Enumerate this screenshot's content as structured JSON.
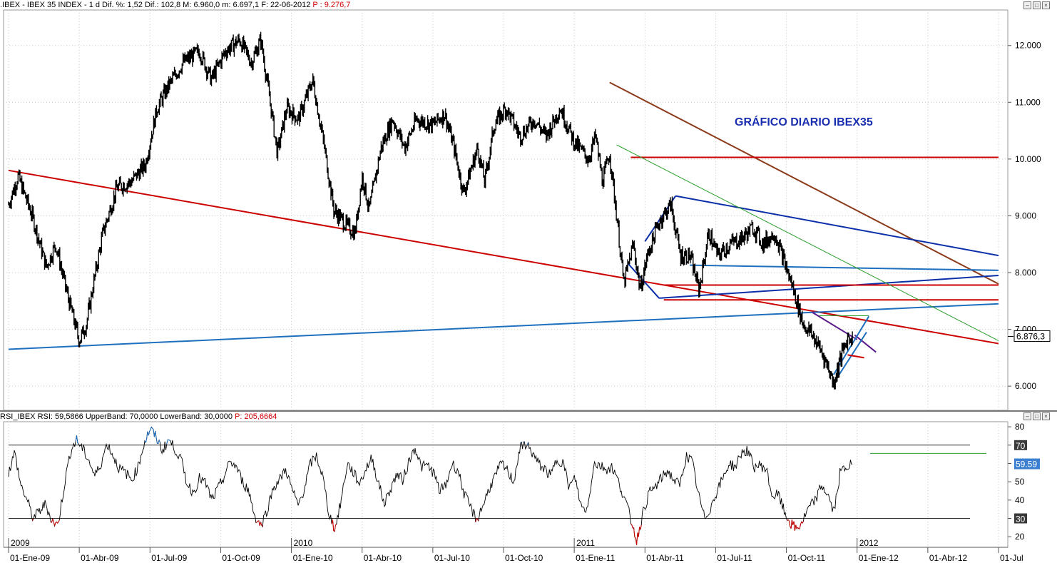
{
  "main_header": {
    "text": ".IBEX - IBEX 35 INDEX -  1 d  Dif. %: 1,52  Dif.: 102,8  M: 6.960,0  m: 6.697,1  F: 22-06-2012",
    "p_text": "P : 9.276,7"
  },
  "rsi_header": {
    "text": "RSI_IBEX  RSI: 59,5866  UpperBand: 70,0000  LowerBand: 30,0000",
    "p_text": "P: 205,6664"
  },
  "window_buttons": [
    "–",
    "□",
    "×"
  ],
  "chart_data": [
    {
      "type": "line",
      "subtype": "candlestick-like daily price",
      "title": "GRÁFICO DIARIO IBEX35",
      "y_ticks": [
        "12.000",
        "11.000",
        "10.000",
        "9.000",
        "8.000",
        "7.000",
        "6.000"
      ],
      "y_tick_values": [
        12000,
        11000,
        10000,
        9000,
        8000,
        7000,
        6000
      ],
      "ylim": [
        5600,
        12600
      ],
      "last_price_label": "6.876,3",
      "last_price": 6876.3,
      "price_path": [
        {
          "t": 0,
          "y": 9200
        },
        {
          "t": 0.4,
          "y": 9700
        },
        {
          "t": 1.0,
          "y": 9000
        },
        {
          "t": 1.6,
          "y": 8100
        },
        {
          "t": 2.0,
          "y": 8500
        },
        {
          "t": 2.5,
          "y": 7600
        },
        {
          "t": 3.0,
          "y": 6800
        },
        {
          "t": 3.3,
          "y": 7100
        },
        {
          "t": 3.6,
          "y": 7800
        },
        {
          "t": 4.0,
          "y": 8700
        },
        {
          "t": 4.6,
          "y": 9500
        },
        {
          "t": 5.2,
          "y": 9600
        },
        {
          "t": 5.8,
          "y": 9900
        },
        {
          "t": 6.3,
          "y": 10900
        },
        {
          "t": 6.8,
          "y": 11300
        },
        {
          "t": 7.4,
          "y": 11700
        },
        {
          "t": 8.1,
          "y": 11900
        },
        {
          "t": 8.6,
          "y": 11400
        },
        {
          "t": 9.2,
          "y": 11900
        },
        {
          "t": 9.8,
          "y": 12100
        },
        {
          "t": 10.3,
          "y": 11700
        },
        {
          "t": 10.7,
          "y": 12100
        },
        {
          "t": 11.1,
          "y": 11000
        },
        {
          "t": 11.4,
          "y": 10100
        },
        {
          "t": 11.8,
          "y": 10900
        },
        {
          "t": 12.3,
          "y": 10700
        },
        {
          "t": 12.9,
          "y": 11400
        },
        {
          "t": 13.4,
          "y": 10200
        },
        {
          "t": 13.8,
          "y": 9100
        },
        {
          "t": 14.4,
          "y": 8800
        },
        {
          "t": 14.7,
          "y": 8700
        },
        {
          "t": 15.0,
          "y": 9700
        },
        {
          "t": 15.3,
          "y": 9100
        },
        {
          "t": 15.8,
          "y": 10200
        },
        {
          "t": 16.3,
          "y": 10700
        },
        {
          "t": 16.8,
          "y": 10200
        },
        {
          "t": 17.3,
          "y": 10700
        },
        {
          "t": 18.0,
          "y": 10600
        },
        {
          "t": 18.5,
          "y": 10800
        },
        {
          "t": 18.9,
          "y": 10200
        },
        {
          "t": 19.3,
          "y": 9400
        },
        {
          "t": 19.9,
          "y": 10200
        },
        {
          "t": 20.2,
          "y": 9600
        },
        {
          "t": 20.6,
          "y": 10600
        },
        {
          "t": 21.1,
          "y": 10900
        },
        {
          "t": 21.7,
          "y": 10400
        },
        {
          "t": 22.3,
          "y": 10700
        },
        {
          "t": 22.8,
          "y": 10400
        },
        {
          "t": 23.4,
          "y": 10900
        },
        {
          "t": 24.0,
          "y": 10300
        },
        {
          "t": 24.6,
          "y": 10000
        },
        {
          "t": 24.9,
          "y": 10400
        },
        {
          "t": 25.2,
          "y": 9600
        },
        {
          "t": 25.5,
          "y": 10100
        },
        {
          "t": 25.8,
          "y": 9000
        },
        {
          "t": 26.1,
          "y": 7800
        },
        {
          "t": 26.5,
          "y": 8500
        },
        {
          "t": 26.8,
          "y": 7700
        },
        {
          "t": 27.1,
          "y": 8300
        },
        {
          "t": 27.6,
          "y": 8900
        },
        {
          "t": 28.1,
          "y": 9200
        },
        {
          "t": 28.5,
          "y": 8300
        },
        {
          "t": 28.9,
          "y": 8300
        },
        {
          "t": 29.3,
          "y": 7700
        },
        {
          "t": 29.7,
          "y": 8700
        },
        {
          "t": 30.1,
          "y": 8300
        },
        {
          "t": 30.6,
          "y": 8500
        },
        {
          "t": 31.1,
          "y": 8600
        },
        {
          "t": 31.6,
          "y": 8800
        },
        {
          "t": 32.0,
          "y": 8500
        },
        {
          "t": 32.5,
          "y": 8700
        },
        {
          "t": 32.9,
          "y": 8200
        },
        {
          "t": 33.3,
          "y": 7700
        },
        {
          "t": 33.7,
          "y": 7100
        },
        {
          "t": 34.1,
          "y": 6900
        },
        {
          "t": 34.5,
          "y": 6600
        },
        {
          "t": 34.8,
          "y": 6300
        },
        {
          "t": 35.0,
          "y": 6050
        },
        {
          "t": 35.3,
          "y": 6500
        },
        {
          "t": 35.6,
          "y": 6850
        },
        {
          "t": 35.8,
          "y": 6876
        }
      ],
      "x_axis": {
        "labels": [
          "01-Ene-09",
          "01-Abr-09",
          "01-Jul-09",
          "01-Oct-09",
          "01-Ene-10",
          "01-Abr-10",
          "01-Jul-10",
          "01-Oct-10",
          "01-Ene-11",
          "01-Abr-11",
          "01-Jul-11",
          "01-Oct-11",
          "01-Ene-12",
          "01-Abr-12",
          "01-Jul"
        ],
        "label_t": [
          0,
          3,
          6,
          9,
          12,
          15,
          18,
          21,
          24,
          27,
          30,
          33,
          36,
          39,
          42
        ],
        "years": [
          "2009",
          "2010",
          "2011",
          "2012"
        ],
        "year_t": [
          0,
          12,
          24,
          36
        ]
      },
      "annotations": [
        {
          "color": "#cc0000",
          "a": [
            0,
            9800
          ],
          "b": [
            42,
            6750
          ]
        },
        {
          "color": "#1f6fbf",
          "a": [
            0,
            6650
          ],
          "b": [
            42,
            7450
          ]
        },
        {
          "color": "#8b3a1a",
          "a": [
            25.5,
            11350
          ],
          "b": [
            42,
            7800
          ]
        },
        {
          "color": "#0a2fa8",
          "a": [
            28.3,
            9350
          ],
          "b": [
            42,
            8300
          ]
        },
        {
          "color": "#0a2fa8",
          "a": [
            27.0,
            8550
          ],
          "b": [
            28.3,
            9350
          ]
        },
        {
          "color": "#0a2fa8",
          "a": [
            26.3,
            8150
          ],
          "b": [
            27.6,
            7550
          ]
        },
        {
          "color": "#0a2fa8",
          "a": [
            27.6,
            7550
          ],
          "b": [
            42,
            7950
          ]
        },
        {
          "color": "#cc0000",
          "a": [
            26.4,
            10030
          ],
          "b": [
            42,
            10030
          ]
        },
        {
          "color": "#cc0000",
          "a": [
            27.8,
            7780
          ],
          "b": [
            42,
            7780
          ]
        },
        {
          "color": "#cc0000",
          "a": [
            27.8,
            7520
          ],
          "b": [
            42,
            7520
          ]
        },
        {
          "color": "#1f6fbf",
          "a": [
            28.9,
            8130
          ],
          "b": [
            42,
            8040
          ]
        },
        {
          "color": "#2a9d2a",
          "a": [
            25.8,
            10250
          ],
          "b": [
            42,
            6800
          ]
        },
        {
          "color": "#2a9d2a",
          "a": [
            34.3,
            7240
          ],
          "b": [
            36.5,
            7240
          ]
        },
        {
          "color": "#5a1a8a",
          "a": [
            34.1,
            7300
          ],
          "b": [
            36.0,
            6820
          ]
        },
        {
          "color": "#5a1a8a",
          "a": [
            35.9,
            6900
          ],
          "b": [
            36.8,
            6600
          ]
        },
        {
          "color": "#1f6fbf",
          "a": [
            35.0,
            6050
          ],
          "b": [
            36.4,
            6950
          ]
        },
        {
          "color": "#1f6fbf",
          "a": [
            35.0,
            6200
          ],
          "b": [
            36.5,
            7230
          ]
        },
        {
          "color": "#cc0000",
          "a": [
            35.6,
            6550
          ],
          "b": [
            36.3,
            6500
          ]
        }
      ]
    },
    {
      "type": "line",
      "title": "",
      "y_ticks": [
        "80",
        "70",
        "60",
        "50",
        "40",
        "30",
        "20"
      ],
      "y_tick_values": [
        80,
        70,
        60,
        50,
        40,
        30,
        20
      ],
      "ylim": [
        15,
        82
      ],
      "upper_band": 70,
      "lower_band": 30,
      "last_value_label": "59.59",
      "last_value": 59.59,
      "band_labels": [
        "70",
        "30"
      ],
      "series": [
        {
          "values": [
            55,
            66,
            48,
            40,
            30,
            34,
            38,
            29,
            26,
            47,
            66,
            73,
            68,
            62,
            53,
            60,
            71,
            64,
            57,
            55,
            51,
            58,
            71,
            79,
            74,
            67,
            73,
            68,
            62,
            49,
            44,
            52,
            49,
            40,
            46,
            53,
            61,
            58,
            50,
            45,
            31,
            26,
            35,
            47,
            51,
            57,
            46,
            37,
            46,
            60,
            64,
            53,
            33,
            24,
            40,
            60,
            55,
            49,
            57,
            63,
            50,
            38,
            46,
            54,
            51,
            61,
            69,
            58,
            59,
            55,
            45,
            48,
            60,
            56,
            43,
            36,
            29,
            37,
            46,
            53,
            60,
            56,
            50,
            68,
            71,
            66,
            60,
            57,
            53,
            62,
            61,
            47,
            52,
            36,
            35,
            60,
            59,
            57,
            58,
            50,
            41,
            30,
            18,
            33,
            44,
            47,
            52,
            56,
            51,
            48,
            64,
            61,
            43,
            30,
            36,
            45,
            52,
            60,
            58,
            66,
            67,
            58,
            59,
            57,
            42,
            43,
            33,
            27,
            24,
            29,
            36,
            40,
            48,
            43,
            33,
            55,
            58,
            59.59
          ]
        }
      ]
    }
  ]
}
